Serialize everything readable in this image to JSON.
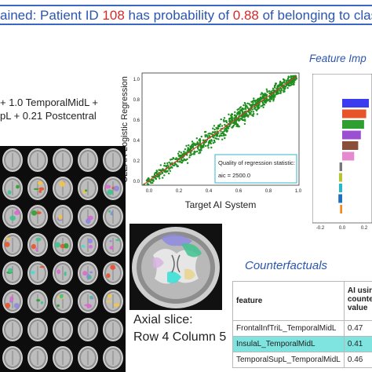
{
  "banner": {
    "prefix": "ained: Patient ID ",
    "patient_id": "108",
    "middle": " has probability of ",
    "probability": "0.88",
    "suffix": " of belonging to clas"
  },
  "feature_importance": {
    "title": "Feature Imp",
    "bars": [
      {
        "color": "#3b3bf0",
        "value": 1.0
      },
      {
        "color": "#e8542a",
        "value": 0.9
      },
      {
        "color": "#2fa02f",
        "value": 0.82
      },
      {
        "color": "#9b4fd1",
        "value": 0.7
      },
      {
        "color": "#8a4f3a",
        "value": 0.6
      },
      {
        "color": "#e68ad0",
        "value": 0.45
      },
      {
        "color": "#777777",
        "value": -0.1
      },
      {
        "color": "#b7c431",
        "value": -0.12
      },
      {
        "color": "#2ab8c8",
        "value": -0.12
      },
      {
        "color": "#1f6fc0",
        "value": -0.14
      },
      {
        "color": "#f5871f",
        "value": -0.08
      }
    ],
    "xticks": [
      "-0.2",
      "0.0",
      "0.2"
    ]
  },
  "formula": {
    "line1": "+ 1.0 TemporalMidL +",
    "line2": "pL + 0.21 Postcentral"
  },
  "scatter": {
    "ylabel": "CLEAR Logistic Regression",
    "xlabel": "Target AI System",
    "xticks": [
      "0.0",
      "0.2",
      "0.4",
      "0.6",
      "0.8",
      "1.0"
    ],
    "yticks": [
      "0.0",
      "0.2",
      "0.4",
      "0.6",
      "0.8",
      "1.0"
    ],
    "stat_label": "Quality of regression statistic:",
    "stat_value": "aic = 2500.0"
  },
  "axial": {
    "caption_line1": "Axial slice:",
    "caption_line2": "Row 4 Column 5"
  },
  "counterfactuals": {
    "title": "Counterfactuals",
    "headers": [
      "feature",
      "AI using counter value"
    ],
    "header_lines": [
      "AI using",
      "counter",
      "value"
    ],
    "rows": [
      {
        "feature": "FrontalInfTriL_TemporalMidL",
        "value": "0.47",
        "highlight": false
      },
      {
        "feature": "InsulaL_TemporalMidL",
        "value": "0.41",
        "highlight": true
      },
      {
        "feature": "TemporalSupL_TemporalMidL",
        "value": "0.46",
        "highlight": false
      }
    ]
  }
}
